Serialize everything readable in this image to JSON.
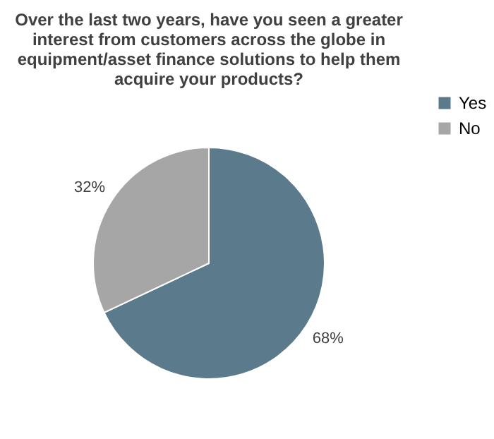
{
  "chart_data": {
    "type": "pie",
    "title": "Over the last two years, have you seen a greater interest from customers across the globe in equipment/asset finance solutions to help them acquire your products?",
    "categories": [
      "Yes",
      "No"
    ],
    "values": [
      68,
      32
    ],
    "colors": [
      "#5b7a8c",
      "#a6a6a6"
    ],
    "value_labels": [
      "68%",
      "32%"
    ],
    "legend": "right"
  }
}
